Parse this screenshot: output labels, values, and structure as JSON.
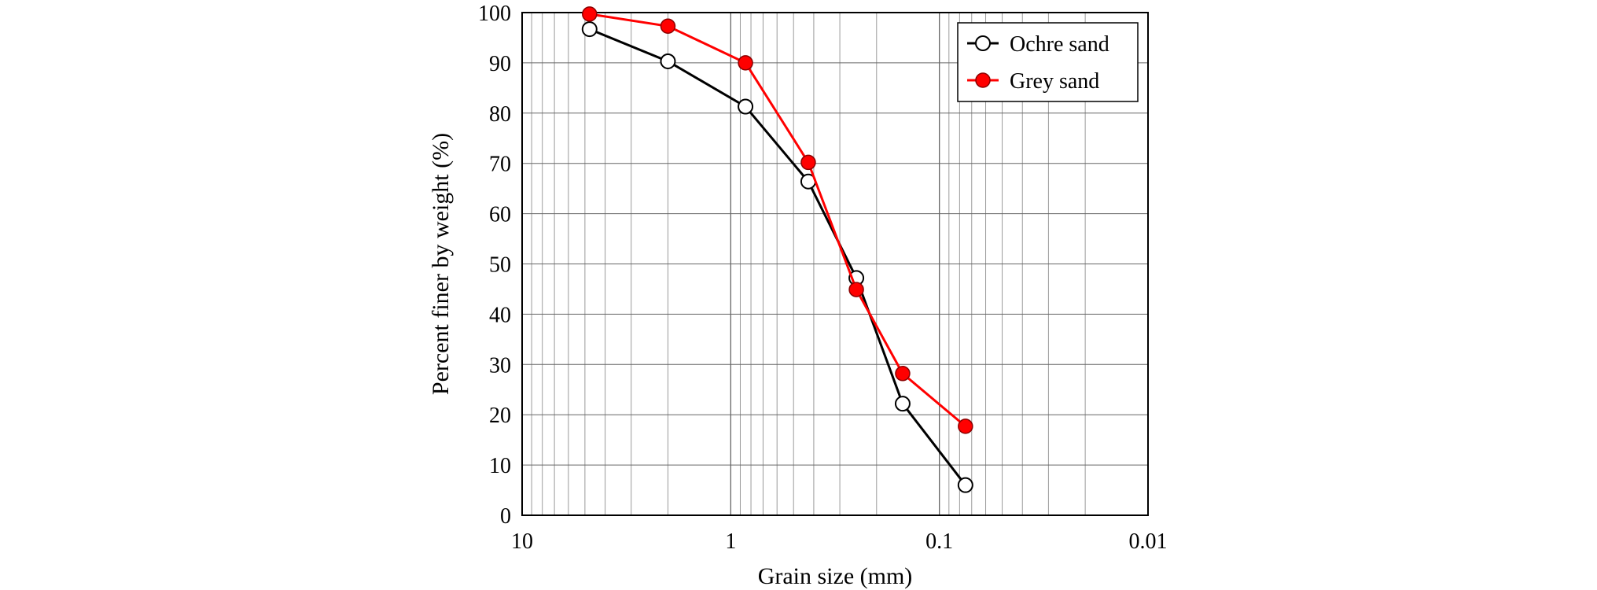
{
  "chart_data": {
    "type": "line",
    "xlabel": "Grain size (mm)",
    "ylabel": "Percent finer by weight (%)",
    "x_scale": "log",
    "x_reversed": true,
    "xlim": [
      10,
      0.01
    ],
    "ylim": [
      0,
      100
    ],
    "x_ticks": [
      {
        "value": 10,
        "label": "10"
      },
      {
        "value": 1,
        "label": "1"
      },
      {
        "value": 0.1,
        "label": "0.1"
      },
      {
        "value": 0.01,
        "label": "0.01"
      }
    ],
    "y_ticks": [
      0,
      10,
      20,
      30,
      40,
      50,
      60,
      70,
      80,
      90,
      100
    ],
    "grid": true,
    "legend_position": "top-right",
    "series": [
      {
        "name": "Ochre sand",
        "color": "#000000",
        "marker": "open-circle",
        "x": [
          4.75,
          2.0,
          0.85,
          0.425,
          0.25,
          0.15,
          0.075
        ],
        "y": [
          96.7,
          90.3,
          81.3,
          66.4,
          47.2,
          22.2,
          6.0
        ]
      },
      {
        "name": "Grey sand",
        "color": "#ff0000",
        "marker": "filled-circle",
        "x": [
          4.75,
          2.0,
          0.85,
          0.425,
          0.25,
          0.15,
          0.075
        ],
        "y": [
          99.7,
          97.3,
          90.0,
          70.2,
          44.9,
          28.2,
          17.7
        ]
      }
    ]
  }
}
